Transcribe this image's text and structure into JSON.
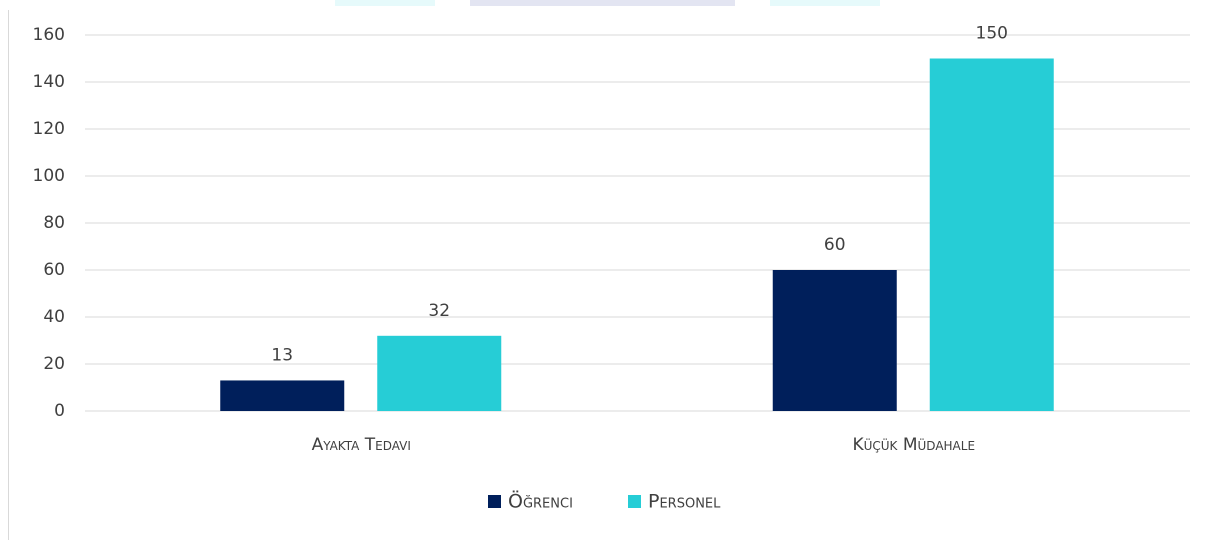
{
  "chart_data": {
    "type": "bar",
    "categories": [
      "Ayakta Tedavi",
      "Küçük Müdahale"
    ],
    "series": [
      {
        "name": "Öğrenci",
        "color": "#001f5b",
        "values": [
          13,
          60
        ]
      },
      {
        "name": "Personel",
        "color": "#26cdd6",
        "values": [
          32,
          150
        ]
      }
    ],
    "ylim": [
      0,
      160
    ],
    "yticks": [
      0,
      20,
      40,
      60,
      80,
      100,
      120,
      140,
      160
    ],
    "grid": true,
    "legend": "bottom"
  }
}
